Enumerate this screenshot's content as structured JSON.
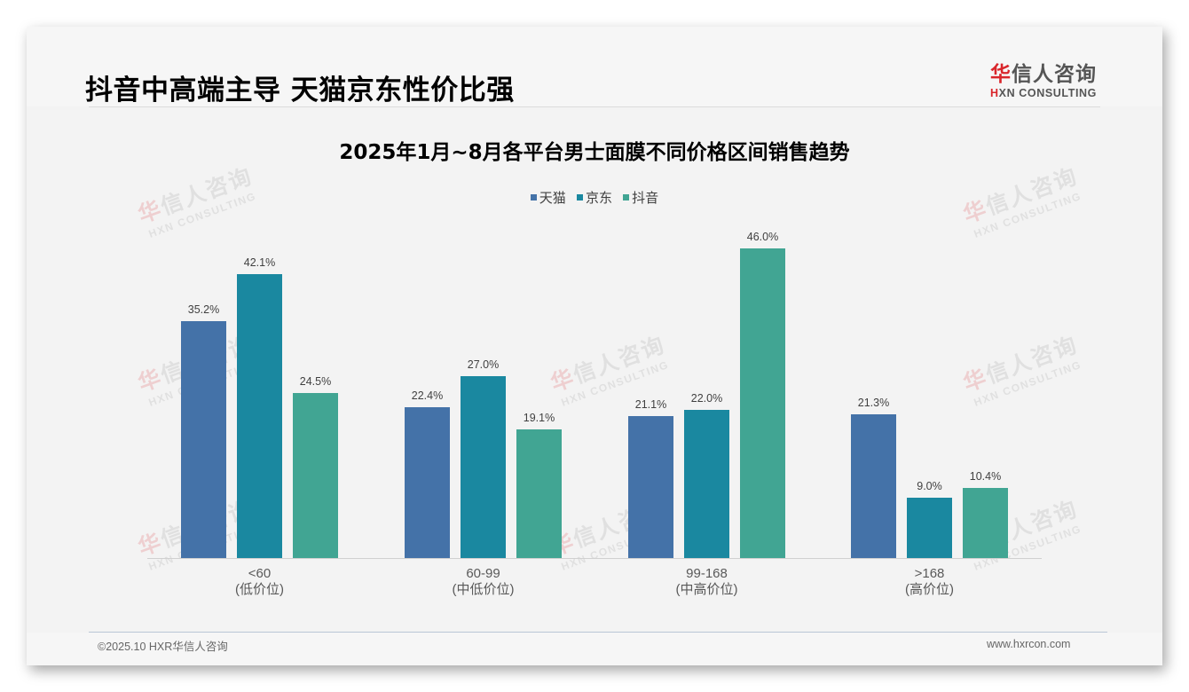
{
  "header": {
    "title": "抖音中高端主导 天猫京东性价比强",
    "logo_cn_first": "华",
    "logo_cn_rest": "信人咨询",
    "logo_en_first": "H",
    "logo_en_rest": "XN CONSULTING"
  },
  "watermark": {
    "cn_first": "华",
    "cn_rest": "信人咨询",
    "en": "HXN CONSULTING"
  },
  "colors": {
    "tmall": "#4472a8",
    "jd": "#1a88a0",
    "douyin": "#41a593",
    "brand_red": "#d9262b",
    "background": "#f3f3f3"
  },
  "chart_data": {
    "type": "bar",
    "title": "2025年1月~8月各平台男士面膜不同价格区间销售趋势",
    "xlabel": "",
    "ylabel": "",
    "ylim": [
      0,
      50
    ],
    "grid": false,
    "legend_position": "top",
    "categories": [
      "<60\n(低价位)",
      "60-99\n(中低价位)",
      "99-168\n(中高价位)",
      ">168\n(高价位)"
    ],
    "category_labels": [
      {
        "range": "<60",
        "tier": "(低价位)"
      },
      {
        "range": "60-99",
        "tier": "(中低价位)"
      },
      {
        "range": "99-168",
        "tier": "(中高价位)"
      },
      {
        "range": ">168",
        "tier": "(高价位)"
      }
    ],
    "series": [
      {
        "name": "天猫",
        "color": "#4472a8",
        "values": [
          35.2,
          22.4,
          21.1,
          21.3
        ],
        "labels": [
          "35.2%",
          "22.4%",
          "21.1%",
          "21.3%"
        ]
      },
      {
        "name": "京东",
        "color": "#1a88a0",
        "values": [
          42.1,
          27.0,
          22.0,
          9.0
        ],
        "labels": [
          "42.1%",
          "27.0%",
          "22.0%",
          "9.0%"
        ]
      },
      {
        "name": "抖音",
        "color": "#41a593",
        "values": [
          24.5,
          19.1,
          46.0,
          10.4
        ],
        "labels": [
          "24.5%",
          "19.1%",
          "46.0%",
          "10.4%"
        ]
      }
    ],
    "value_format": "percent_1dp"
  },
  "footer": {
    "copyright": "©2025.10 HXR华信人咨询",
    "website": "www.hxrcon.com"
  }
}
